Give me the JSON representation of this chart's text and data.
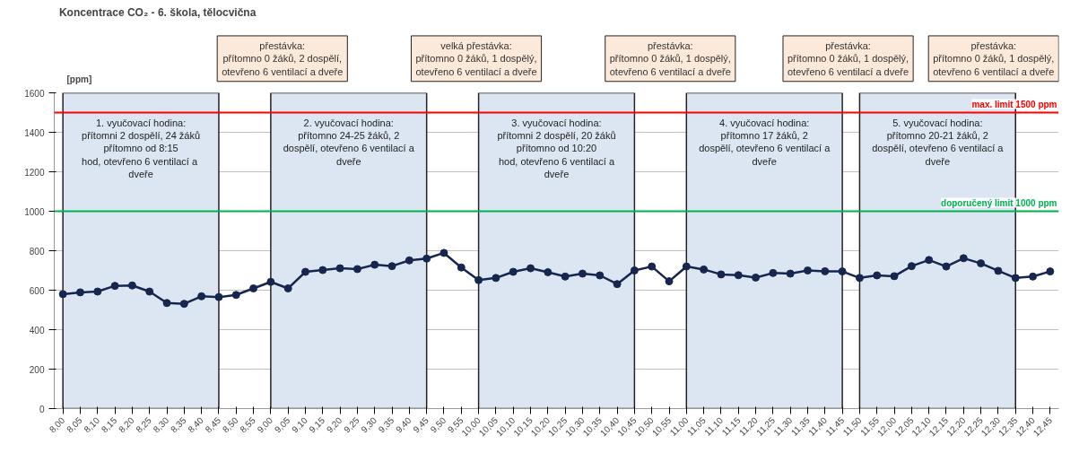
{
  "chart_data": {
    "type": "line",
    "title": "Koncentrace CO₂ - 6. škola, tělocvična",
    "ylabel": "[ppm]",
    "categories": [
      "8,00",
      "8,05",
      "8,10",
      "8,15",
      "8,20",
      "8,25",
      "8,30",
      "8,35",
      "8,40",
      "8,45",
      "8,50",
      "8,55",
      "9,00",
      "9,05",
      "9,10",
      "9,15",
      "9,20",
      "9,25",
      "9,30",
      "9,35",
      "9,40",
      "9,45",
      "9,50",
      "9,55",
      "10,00",
      "10,05",
      "10,10",
      "10,15",
      "10,20",
      "10,25",
      "10,30",
      "10,35",
      "10,40",
      "10,45",
      "10,50",
      "10,55",
      "11,00",
      "11,05",
      "11,10",
      "11,15",
      "11,20",
      "11,25",
      "11,30",
      "11,35",
      "11,40",
      "11,45",
      "11,50",
      "11,55",
      "12,00",
      "12,05",
      "12,10",
      "12,15",
      "12,20",
      "12,25",
      "12,30",
      "12,35",
      "12,40",
      "12,45"
    ],
    "series": [
      {
        "color": "#17264f",
        "values": [
          580,
          589,
          593,
          622,
          624,
          593,
          535,
          531,
          569,
          565,
          576,
          609,
          642,
          609,
          693,
          702,
          711,
          707,
          729,
          722,
          751,
          760,
          789,
          715,
          651,
          662,
          693,
          711,
          691,
          669,
          684,
          675,
          631,
          700,
          720,
          645,
          720,
          705,
          680,
          676,
          664,
          687,
          684,
          700,
          696,
          695,
          662,
          675,
          671,
          722,
          753,
          720,
          762,
          736,
          698,
          662,
          669,
          695
        ]
      }
    ],
    "ylim": [
      0,
      1600
    ],
    "yticks": [
      0,
      200,
      400,
      600,
      800,
      1000,
      1200,
      1400,
      1600
    ],
    "grid": "y",
    "marker": "circle",
    "line_style": "solid",
    "ref_lines": [
      {
        "axis": "y",
        "value": 1500,
        "label": "max. limit 1500 ppm",
        "color": "#ff0000"
      },
      {
        "axis": "y",
        "value": 1000,
        "label": "doporučený limit 1000 ppm",
        "color": "#00b050"
      }
    ],
    "bands": [
      {
        "axis": "x",
        "from": "8,00",
        "to": "8,45",
        "color": "#dce6f2",
        "label": "1. vyučovací hodina:\npřítomni 2 dospělí, 24 žáků\npřítomno od 8:15\nhod,  otevřeno 6 ventilací a\ndveře"
      },
      {
        "axis": "x",
        "from": "9,00",
        "to": "9,45",
        "color": "#dce6f2",
        "label": "2. vyučovací hodina:\npřítomno 24-25 žáků, 2\ndospělí, otevřeno 6 ventilací a\ndveře"
      },
      {
        "axis": "x",
        "from": "10,00",
        "to": "10,45",
        "color": "#dce6f2",
        "label": "3. vyučovací hodina:\npřítomni 2 dospělí, 20 žáků\npřítomno od 10:20\nhod, otevřeno 6 ventilací a\ndveře"
      },
      {
        "axis": "x",
        "from": "11,00",
        "to": "11,45",
        "color": "#dce6f2",
        "label": "4. vyučovací hodina:\npřítomno 17 žáků, 2\ndospělí, otevřeno 6 ventilací a\ndveře"
      },
      {
        "axis": "x",
        "from": "11,50",
        "to": "12,35",
        "color": "#dce6f2",
        "label": "5. vyučovací hodina:\npřítomno 20-21 žáků, 2\ndospělí, otevřeno 6 ventilací a\ndveře"
      }
    ],
    "annotations": [
      "přestávka:\npřítomno 0 žáků, 2 dospělí,\notevřeno 6 ventilací a dveře",
      "velká přestávka:\npřítomno 0 žáků, 1 dospělý,\notevřeno 6 ventilací a dveře",
      "přestávka:\npřítomno 0 žáků, 1 dospělý,\notevřeno 6 ventilací a dveře",
      "přestávka:\npřítomno 0 žáků, 1 dospělý,\notevřeno 6 ventilací a dveře",
      "přestávka:\npřítomno 0 žáků, 1 dospělý,\notevřeno 6 ventilací a dveře"
    ]
  }
}
